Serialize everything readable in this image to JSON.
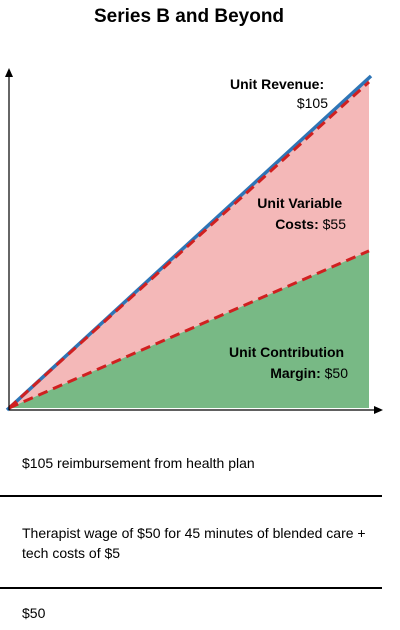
{
  "chart_data": {
    "type": "area",
    "title": "Series B and Beyond",
    "x": [
      0,
      1
    ],
    "series": [
      {
        "name": "Unit Revenue",
        "values": [
          0,
          105
        ],
        "line_color": "#2e75b6"
      },
      {
        "name": "Unit Variable Costs",
        "values": [
          0,
          55
        ],
        "fill_color": "#f4b8b8"
      },
      {
        "name": "Unit Contribution Margin",
        "values": [
          0,
          50
        ],
        "fill_color": "#78b985"
      }
    ],
    "dashed_line_color": "#d02020",
    "ylim": [
      0,
      105
    ],
    "grid": false,
    "labels": {
      "revenue": {
        "bold": "Unit Revenue:",
        "value": "$105"
      },
      "costs": {
        "bold1": "Unit Variable",
        "bold2": "Costs:",
        "value": "$55"
      },
      "margin": {
        "bold1": "Unit Contribution",
        "bold2": "Margin:",
        "value": "$50"
      }
    }
  },
  "descriptions": {
    "revenue": "$105 reimbursement from health plan",
    "costs": "Therapist wage of $50 for 45 minutes of blended care + tech costs of $5",
    "margin": "$50"
  }
}
